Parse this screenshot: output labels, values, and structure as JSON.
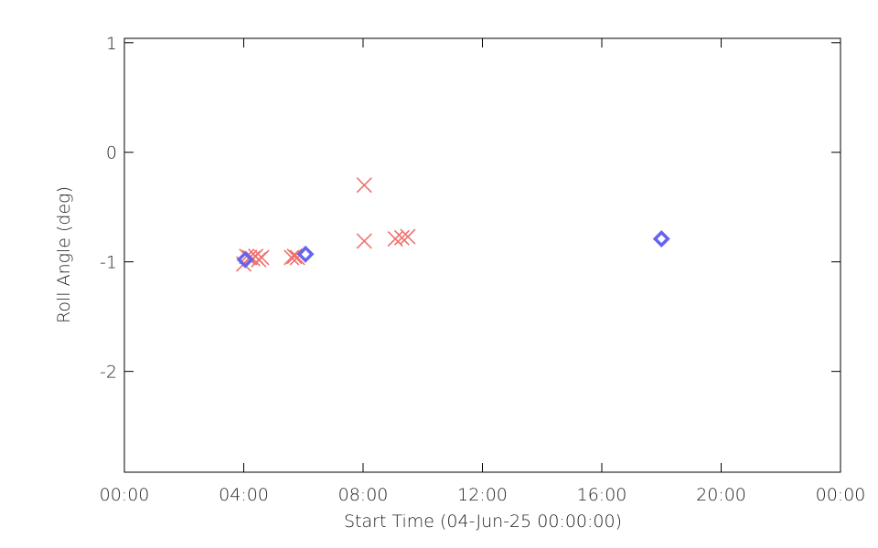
{
  "chart_data": {
    "type": "scatter",
    "x_label": "Start Time (04-Jun-25 00:00:00)",
    "y_label": "Roll Angle (deg)",
    "xlim": [
      0,
      24
    ],
    "ylim": [
      -2.92,
      1.04
    ],
    "xticks": [
      {
        "value": 0,
        "label": "00:00"
      },
      {
        "value": 4,
        "label": "04:00"
      },
      {
        "value": 8,
        "label": "08:00"
      },
      {
        "value": 12,
        "label": "12:00"
      },
      {
        "value": 16,
        "label": "16:00"
      },
      {
        "value": 20,
        "label": "20:00"
      },
      {
        "value": 24,
        "label": "00:00"
      }
    ],
    "yticks": [
      1,
      0,
      -1,
      -2
    ],
    "series": [
      {
        "marker": "x",
        "color": "#f07070",
        "x": [
          4.0,
          4.1,
          4.2,
          4.3,
          4.4,
          4.5,
          4.6,
          5.6,
          5.7,
          5.8,
          8.04,
          8.04,
          9.08,
          9.3,
          9.5
        ],
        "values": [
          -1.02,
          -0.95,
          -0.96,
          -0.97,
          -0.95,
          -0.98,
          -0.96,
          -0.96,
          -0.95,
          -0.96,
          -0.3,
          -0.81,
          -0.79,
          -0.78,
          -0.77
        ]
      },
      {
        "marker": "diamond",
        "color": "#6464f0",
        "x": [
          4.05,
          6.07,
          18.0
        ],
        "values": [
          -0.98,
          -0.93,
          -0.79
        ]
      }
    ]
  }
}
